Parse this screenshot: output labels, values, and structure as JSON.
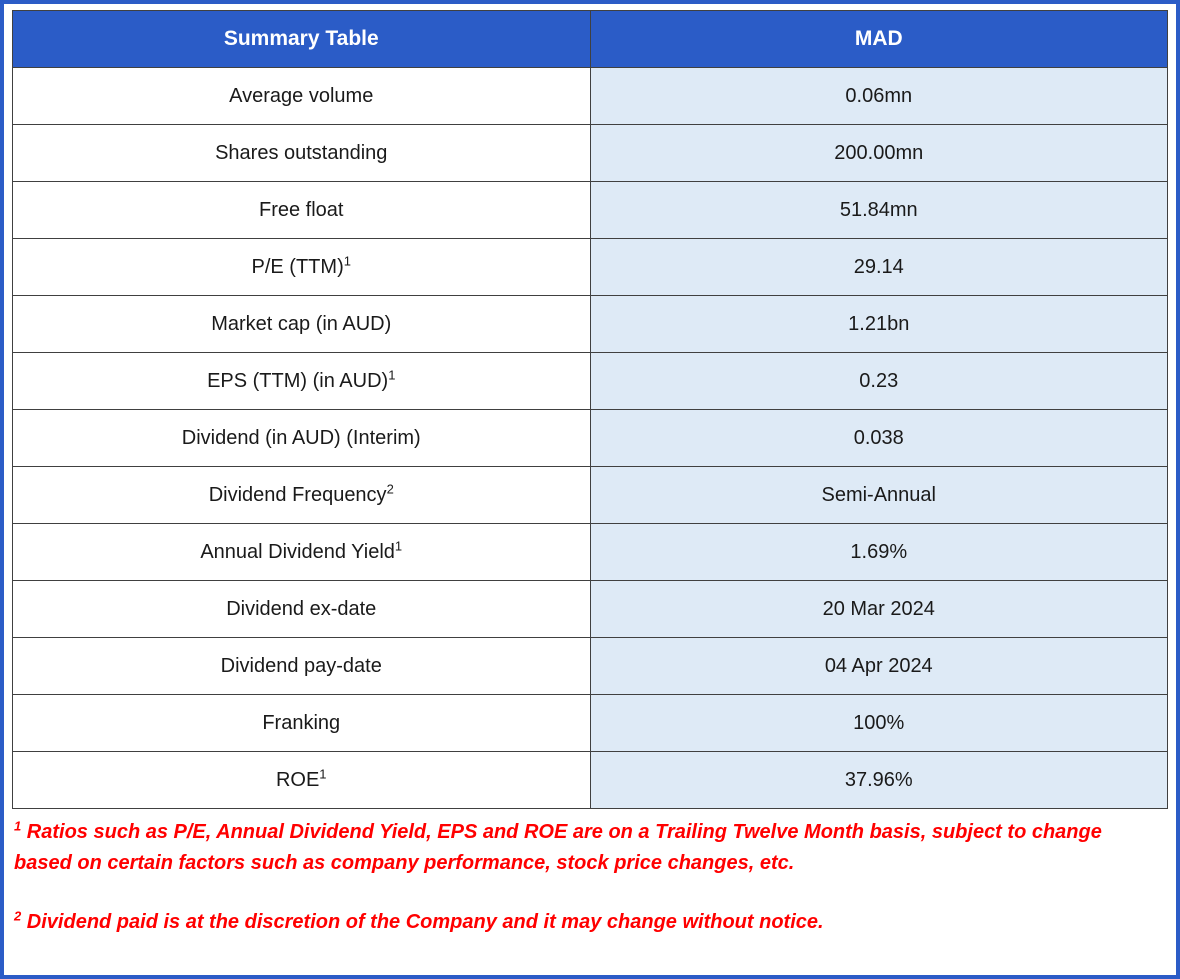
{
  "table": {
    "header": {
      "col1": "Summary Table",
      "col2": "MAD"
    },
    "rows": [
      {
        "label": "Average volume",
        "sup": "",
        "value": "0.06mn"
      },
      {
        "label": "Shares outstanding",
        "sup": "",
        "value": "200.00mn"
      },
      {
        "label": "Free float",
        "sup": "",
        "value": "51.84mn"
      },
      {
        "label": "P/E (TTM)",
        "sup": "1",
        "value": "29.14"
      },
      {
        "label": "Market cap (in AUD)",
        "sup": "",
        "value": "1.21bn"
      },
      {
        "label": "EPS (TTM) (in AUD)",
        "sup": "1",
        "value": "0.23"
      },
      {
        "label": "Dividend (in AUD) (Interim)",
        "sup": "",
        "value": "0.038"
      },
      {
        "label": "Dividend Frequency",
        "sup": "2",
        "value": "Semi-Annual"
      },
      {
        "label": "Annual Dividend Yield",
        "sup": "1",
        "value": "1.69%"
      },
      {
        "label": "Dividend ex-date",
        "sup": "",
        "value": "20 Mar 2024"
      },
      {
        "label": "Dividend pay-date",
        "sup": "",
        "value": "04 Apr 2024"
      },
      {
        "label": "Franking",
        "sup": "",
        "value": "100%"
      },
      {
        "label": "ROE",
        "sup": "1",
        "value": "37.96%"
      }
    ]
  },
  "footnotes": [
    {
      "sup": "1",
      "text": "Ratios such as P/E, Annual Dividend Yield, EPS and ROE are on a Trailing Twelve Month basis, subject to change based on certain factors such as company performance, stock price changes, etc."
    },
    {
      "sup": "2",
      "text": "Dividend paid is at the discretion of the Company and it may change without notice."
    }
  ],
  "colors": {
    "header_bg": "#2B5CC7",
    "header_text": "#FFFFFF",
    "value_bg": "#DEEAF6",
    "inner_border": "#404040",
    "outer_border": "#2B5CC7",
    "footnote_text": "#FF0000"
  }
}
